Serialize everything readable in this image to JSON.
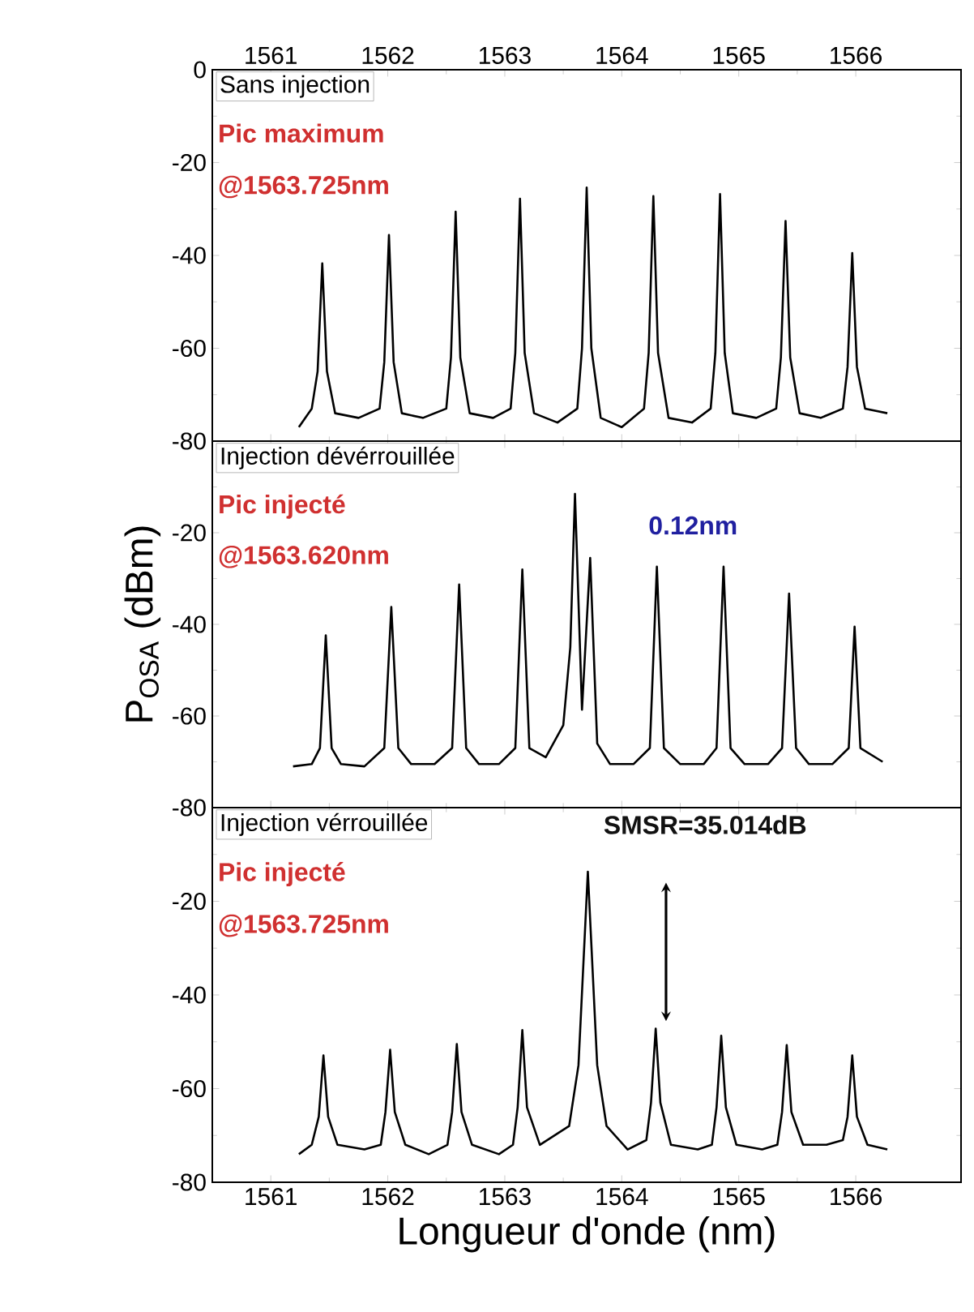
{
  "chart_data": [
    {
      "type": "line",
      "title": "Sans injection",
      "annotations": [
        "Pic maximum",
        "@1563.725nm"
      ],
      "xlim": [
        1560.5,
        1566.9
      ],
      "xticks": [
        1561,
        1562,
        1563,
        1564,
        1565,
        1566
      ],
      "ylim": [
        -80,
        0
      ],
      "yticks": [
        -80,
        -60,
        -40,
        -20,
        0
      ],
      "series": [
        {
          "color": "#000000",
          "x": [
            1561.24,
            1561.35,
            1561.4,
            1561.44,
            1561.48,
            1561.55,
            1561.75,
            1561.93,
            1561.97,
            1562.01,
            1562.05,
            1562.12,
            1562.3,
            1562.5,
            1562.54,
            1562.58,
            1562.62,
            1562.7,
            1562.9,
            1563.05,
            1563.09,
            1563.13,
            1563.17,
            1563.25,
            1563.45,
            1563.62,
            1563.66,
            1563.7,
            1563.74,
            1563.82,
            1564.0,
            1564.19,
            1564.23,
            1564.27,
            1564.31,
            1564.4,
            1564.6,
            1564.76,
            1564.8,
            1564.84,
            1564.88,
            1564.95,
            1565.15,
            1565.32,
            1565.36,
            1565.4,
            1565.44,
            1565.52,
            1565.7,
            1565.89,
            1565.93,
            1565.97,
            1566.01,
            1566.08,
            1566.27
          ],
          "values": [
            -77,
            -73,
            -65,
            -41.7,
            -65,
            -74,
            -75,
            -73,
            -63,
            -35.6,
            -63,
            -74,
            -75,
            -73,
            -62,
            -30.6,
            -62,
            -74,
            -75,
            -73,
            -61,
            -27.8,
            -61,
            -74,
            -76,
            -73,
            -60,
            -25.4,
            -60,
            -75,
            -77,
            -73,
            -61,
            -27.2,
            -61,
            -75,
            -76,
            -73,
            -61,
            -26.8,
            -61,
            -74,
            -75,
            -73,
            -62,
            -32.6,
            -62,
            -74,
            -75,
            -73,
            -64,
            -39.5,
            -64,
            -73,
            -74
          ]
        }
      ]
    },
    {
      "type": "line",
      "title": "Injection dévérrouillée",
      "annotations": [
        "Pic injecté",
        "@1563.620nm",
        "0.12nm"
      ],
      "ylabel": "P$_{OSA}$ (dBm)",
      "xlim": [
        1560.5,
        1566.9
      ],
      "xticks": [
        1561,
        1562,
        1563,
        1564,
        1565,
        1566
      ],
      "ylim": [
        -80,
        0
      ],
      "yticks": [
        -80,
        -60,
        -40,
        -20,
        {
          "value": 0,
          "label": null
        }
      ],
      "tick_labels": "y",
      "series": [
        {
          "color": "#000000",
          "x": [
            1561.19,
            1561.35,
            1561.42,
            1561.47,
            1561.52,
            1561.6,
            1561.8,
            1561.97,
            1562.03,
            1562.09,
            1562.2,
            1562.4,
            1562.55,
            1562.61,
            1562.67,
            1562.78,
            1562.95,
            1563.09,
            1563.15,
            1563.21,
            1563.35,
            1563.5,
            1563.56,
            1563.6,
            1563.66,
            1563.73,
            1563.79,
            1563.9,
            1564.1,
            1564.24,
            1564.3,
            1564.36,
            1564.5,
            1564.7,
            1564.81,
            1564.87,
            1564.93,
            1565.05,
            1565.25,
            1565.37,
            1565.43,
            1565.49,
            1565.6,
            1565.8,
            1565.94,
            1565.99,
            1566.04,
            1566.23
          ],
          "values": [
            -71,
            -70.5,
            -67,
            -42.4,
            -67,
            -70.5,
            -71,
            -67,
            -36.2,
            -67,
            -70.5,
            -70.5,
            -67,
            -31.3,
            -67,
            -70.5,
            -70.5,
            -67,
            -28,
            -67,
            -69,
            -62,
            -45,
            -11.5,
            -58.6,
            -25.5,
            -66,
            -70.5,
            -70.5,
            -67,
            -27.4,
            -67,
            -70.5,
            -70.5,
            -67,
            -27.4,
            -67,
            -70.5,
            -70.5,
            -67,
            -33.3,
            -67,
            -70.5,
            -70.5,
            -67,
            -40.5,
            -67,
            -70
          ]
        }
      ]
    },
    {
      "type": "line",
      "title": "Injection vérrouillée",
      "annotations": [
        "Pic injecté",
        "@1563.725nm",
        "SMSR=35.014dB"
      ],
      "xlabel": "Longueur d'onde (nm)",
      "xlim": [
        1560.5,
        1566.9
      ],
      "xticks": [
        1561,
        1562,
        1563,
        1564,
        1565,
        1566
      ],
      "ylim": [
        -80,
        0
      ],
      "yticks": [
        -80,
        -60,
        -40,
        -20,
        {
          "value": 0,
          "label": null
        }
      ],
      "series": [
        {
          "color": "#000000",
          "x": [
            1561.24,
            1561.35,
            1561.41,
            1561.45,
            1561.49,
            1561.57,
            1561.8,
            1561.94,
            1561.98,
            1562.02,
            1562.06,
            1562.15,
            1562.35,
            1562.51,
            1562.55,
            1562.59,
            1562.63,
            1562.72,
            1562.95,
            1563.07,
            1563.11,
            1563.15,
            1563.19,
            1563.3,
            1563.55,
            1563.63,
            1563.71,
            1563.79,
            1563.87,
            1564.05,
            1564.21,
            1564.25,
            1564.29,
            1564.33,
            1564.42,
            1564.65,
            1564.77,
            1564.81,
            1564.85,
            1564.89,
            1564.98,
            1565.2,
            1565.33,
            1565.37,
            1565.41,
            1565.45,
            1565.55,
            1565.75,
            1565.89,
            1565.93,
            1565.97,
            1566.01,
            1566.1,
            1566.27
          ],
          "values": [
            -74,
            -72,
            -66,
            -52.9,
            -66,
            -72,
            -73,
            -72,
            -65,
            -51.7,
            -65,
            -72,
            -74,
            -72,
            -65,
            -50.5,
            -65,
            -72,
            -74,
            -72,
            -64,
            -47.5,
            -64,
            -72,
            -68,
            -55,
            -13.7,
            -55,
            -68,
            -73,
            -71,
            -63,
            -47.2,
            -63,
            -72,
            -73,
            -72,
            -64,
            -48.7,
            -64,
            -72,
            -73,
            -72,
            -65,
            -50.7,
            -65,
            -72,
            -72,
            -71,
            -66,
            -52.9,
            -66,
            -72,
            -73
          ]
        }
      ]
    }
  ]
}
